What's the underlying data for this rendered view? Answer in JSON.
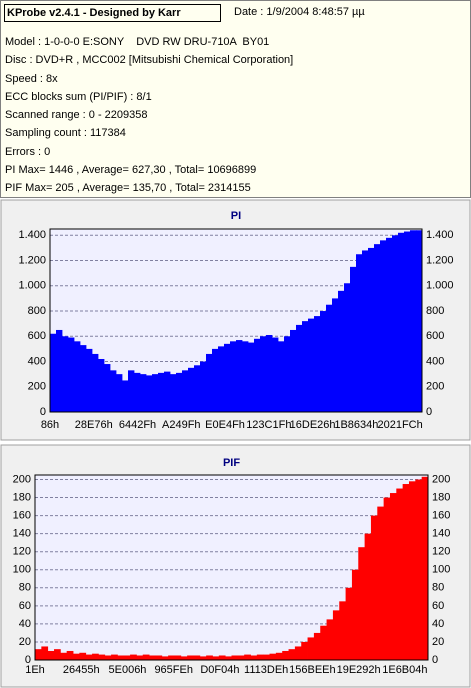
{
  "info": {
    "title": "KProbe v2.4.1 - Designed by Karr",
    "date": "Date : 1/9/2004 8:48:57 µµ",
    "lines": [
      "Model : 1-0-0-0 E:SONY    DVD RW DRU-710A  BY01",
      "Disc : DVD+R , MCC002 [Mitsubishi Chemical Corporation]",
      "Speed : 8x",
      "ECC blocks sum (PI/PIF) : 8/1",
      "Scanned range : 0 - 2209358",
      "Sampling count : 117384",
      "Errors : 0",
      "PI Max= 1446 , Average= 627,30 , Total= 10696899",
      "PIF Max= 205 , Average= 135,70 , Total= 2314155"
    ]
  },
  "chart_data": [
    {
      "type": "bar",
      "title": "PI",
      "color": "#0000ff",
      "grid": true,
      "mirror_yticks": true,
      "ylim": [
        0,
        1450
      ],
      "yticks": [
        0,
        200,
        400,
        600,
        800,
        {
          "value": 1000,
          "label": "1.000"
        },
        {
          "value": 1200,
          "label": "1.200"
        },
        {
          "value": 1400,
          "label": "1.400"
        }
      ],
      "x_labels": [
        "86h",
        "28E76h",
        "6442Fh",
        "A249Fh",
        "E0E4Fh",
        "123C1Fh",
        "16DE26h",
        "1B8634h",
        "2021FCh"
      ],
      "values": [
        620,
        650,
        600,
        590,
        560,
        530,
        500,
        460,
        420,
        380,
        330,
        300,
        250,
        330,
        310,
        300,
        290,
        300,
        310,
        320,
        300,
        310,
        330,
        350,
        370,
        400,
        460,
        500,
        520,
        540,
        560,
        570,
        560,
        550,
        580,
        600,
        610,
        590,
        560,
        600,
        650,
        690,
        720,
        740,
        760,
        800,
        850,
        900,
        960,
        1020,
        1150,
        1250,
        1280,
        1300,
        1330,
        1360,
        1380,
        1400,
        1420,
        1430,
        1440,
        1440
      ]
    },
    {
      "type": "bar",
      "title": "PIF",
      "color": "#ff0000",
      "grid": true,
      "mirror_yticks": true,
      "ylim": [
        0,
        205
      ],
      "yticks": [
        0,
        20,
        40,
        60,
        80,
        100,
        120,
        140,
        160,
        180,
        200
      ],
      "x_labels": [
        "1Eh",
        "26455h",
        "5E006h",
        "965FEh",
        "D0F04h",
        "1113DEh",
        "156BEEh",
        "19E292h",
        "1E6B04h"
      ],
      "values": [
        12,
        15,
        10,
        12,
        8,
        10,
        7,
        8,
        6,
        7,
        6,
        5,
        6,
        5,
        5,
        6,
        5,
        6,
        5,
        5,
        4,
        5,
        5,
        4,
        5,
        5,
        4,
        5,
        4,
        5,
        4,
        5,
        5,
        6,
        5,
        6,
        6,
        7,
        8,
        10,
        12,
        15,
        20,
        25,
        30,
        38,
        45,
        55,
        65,
        80,
        100,
        125,
        140,
        160,
        170,
        180,
        185,
        190,
        195,
        198,
        200,
        203
      ]
    }
  ]
}
